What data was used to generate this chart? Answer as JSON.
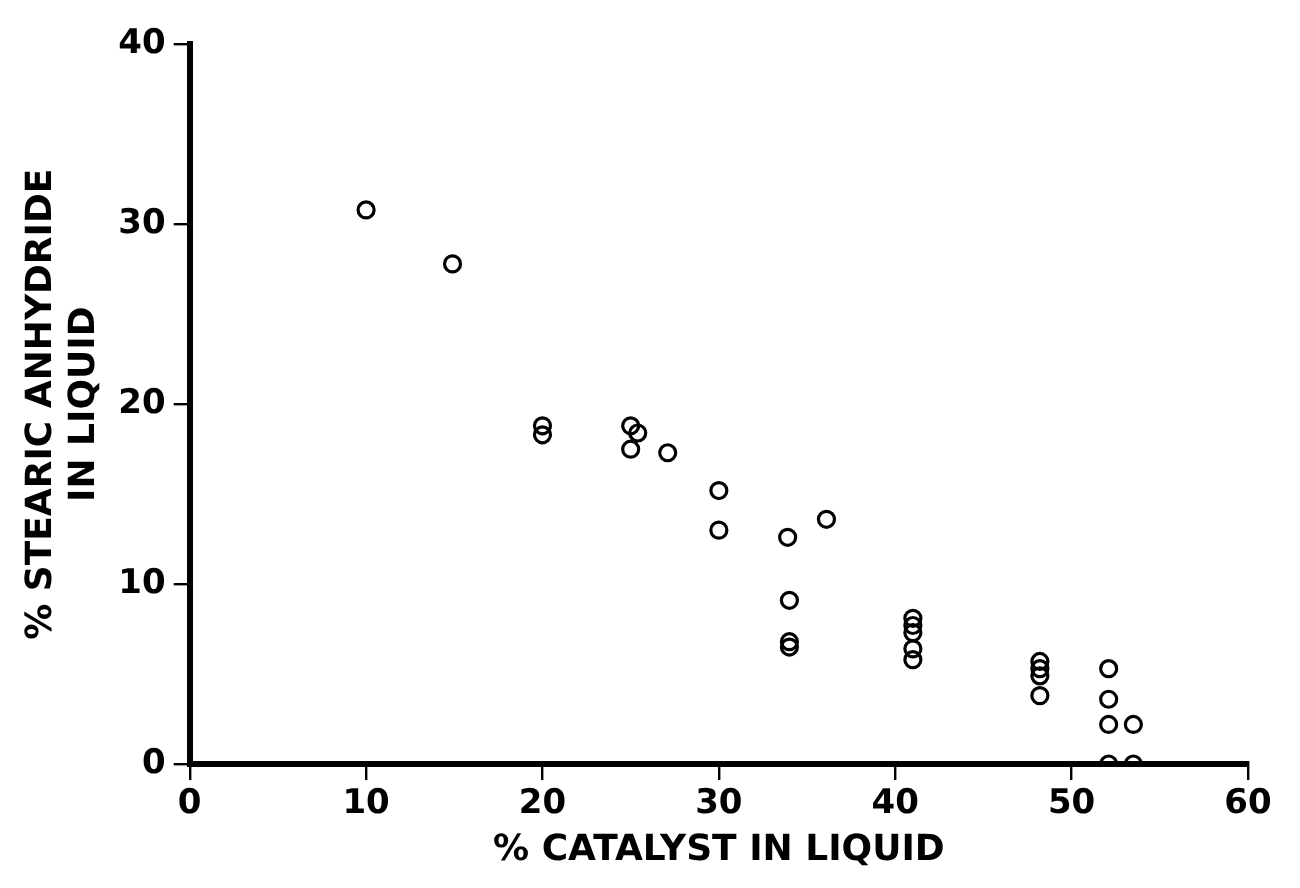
{
  "chart_data": {
    "type": "scatter",
    "xlabel": "% CATALYST IN LIQUID",
    "ylabel": "% STEARIC ANHYDRIDE\nIN LIQUID",
    "x": [
      10,
      14.9,
      20,
      20,
      25,
      25.4,
      25,
      27.1,
      30,
      30,
      33.9,
      36.1,
      34,
      34,
      34,
      41,
      41,
      41,
      41,
      41,
      48.2,
      48.2,
      48.2,
      48.2,
      52.1,
      52.1,
      52.1,
      52.1,
      53.5,
      53.5
    ],
    "values": [
      30.8,
      27.8,
      18.8,
      18.3,
      18.8,
      18.4,
      17.5,
      17.3,
      15.2,
      13,
      12.6,
      13.6,
      9.1,
      6.8,
      6.5,
      8.1,
      7.7,
      7.3,
      6.4,
      5.8,
      5.7,
      5.3,
      4.9,
      3.8,
      5.3,
      3.6,
      2.2,
      0,
      2.2,
      0
    ],
    "color": "#000000",
    "marker": "circle",
    "xlim": [
      0,
      60
    ],
    "ylim": [
      0,
      40
    ],
    "xticks": [
      0,
      10,
      20,
      30,
      40,
      50,
      60
    ],
    "yticks": [
      0,
      10,
      20,
      30,
      40
    ],
    "grid": false,
    "legend": false
  }
}
